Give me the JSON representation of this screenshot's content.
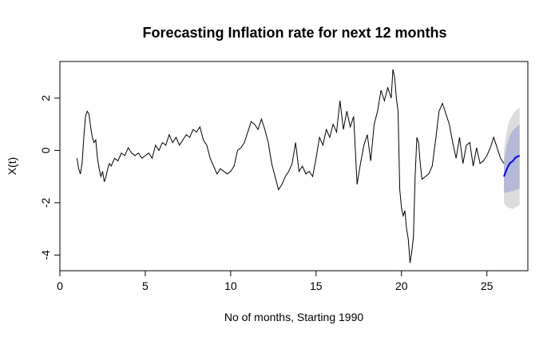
{
  "chart_data": {
    "type": "line",
    "title": "Forecasting Inflation rate for next 12 months",
    "xlabel": "No of months, Starting 1990",
    "ylabel": "X(t)",
    "xlim": [
      0,
      27.4
    ],
    "ylim": [
      -4.6,
      3.4
    ],
    "xticks": [
      0,
      5,
      10,
      15,
      20,
      25
    ],
    "yticks": [
      -4,
      -2,
      0,
      2
    ],
    "grid": false,
    "colors": {
      "series": "#000000",
      "forecast": "#0000ff",
      "band_inner": "#b4b9d8",
      "band_outer": "#dcdcdc"
    },
    "series": [
      {
        "x": [
          1.0,
          1.1,
          1.2,
          1.3,
          1.4,
          1.5,
          1.6,
          1.7,
          1.8,
          1.9,
          2.0,
          2.1,
          2.2,
          2.3,
          2.4,
          2.5,
          2.6,
          2.7,
          2.8,
          2.9,
          3.0,
          3.2,
          3.4,
          3.6,
          3.8,
          4.0,
          4.2,
          4.4,
          4.6,
          4.8,
          5.0,
          5.2,
          5.4,
          5.6,
          5.8,
          6.0,
          6.2,
          6.4,
          6.6,
          6.8,
          7.0,
          7.2,
          7.4,
          7.6,
          7.8,
          8.0,
          8.2,
          8.4,
          8.6,
          8.8,
          9.0,
          9.2,
          9.4,
          9.6,
          9.8,
          10.0,
          10.2,
          10.4,
          10.6,
          10.8,
          11.0,
          11.2,
          11.4,
          11.6,
          11.8,
          12.0,
          12.2,
          12.4,
          12.6,
          12.8,
          13.0,
          13.2,
          13.4,
          13.6,
          13.8,
          14.0,
          14.2,
          14.4,
          14.6,
          14.8,
          15.0,
          15.2,
          15.4,
          15.6,
          15.8,
          16.0,
          16.2,
          16.4,
          16.6,
          16.8,
          17.0,
          17.2,
          17.4,
          17.6,
          17.8,
          18.0,
          18.2,
          18.4,
          18.6,
          18.8,
          19.0,
          19.2,
          19.4,
          19.5,
          19.6,
          19.7,
          19.8,
          19.9,
          20.0,
          20.1,
          20.2,
          20.3,
          20.4,
          20.5,
          20.6,
          20.7,
          20.8,
          20.9,
          21.0,
          21.1,
          21.2,
          21.4,
          21.6,
          21.8,
          22.0,
          22.2,
          22.4,
          22.6,
          22.8,
          23.0,
          23.2,
          23.4,
          23.6,
          23.8,
          24.0,
          24.2,
          24.4,
          24.6,
          24.8,
          25.0,
          25.2,
          25.4,
          25.6,
          25.8,
          26.0
        ],
        "y": [
          -0.3,
          -0.7,
          -0.9,
          -0.5,
          0.5,
          1.3,
          1.5,
          1.4,
          0.9,
          0.5,
          0.3,
          0.4,
          -0.3,
          -0.7,
          -1.0,
          -0.8,
          -1.2,
          -1.0,
          -0.7,
          -0.5,
          -0.6,
          -0.3,
          -0.4,
          -0.1,
          -0.2,
          0.1,
          -0.1,
          -0.2,
          -0.1,
          -0.3,
          -0.2,
          -0.1,
          -0.3,
          0.2,
          0.0,
          0.3,
          0.2,
          0.6,
          0.3,
          0.5,
          0.2,
          0.4,
          0.6,
          0.5,
          0.8,
          0.7,
          0.9,
          0.4,
          0.2,
          -0.3,
          -0.6,
          -0.9,
          -0.7,
          -0.8,
          -0.9,
          -0.8,
          -0.6,
          0.0,
          0.1,
          0.3,
          0.7,
          1.1,
          1.0,
          0.8,
          1.2,
          0.8,
          0.3,
          -0.5,
          -1.0,
          -1.5,
          -1.3,
          -1.0,
          -0.8,
          -0.5,
          0.3,
          -0.8,
          -0.6,
          -0.9,
          -0.8,
          -1.0,
          -0.3,
          0.5,
          0.2,
          0.8,
          0.5,
          1.0,
          0.7,
          1.9,
          0.8,
          1.5,
          0.9,
          1.3,
          -1.3,
          -0.5,
          0.2,
          0.6,
          -0.4,
          1.0,
          1.5,
          2.3,
          1.9,
          2.4,
          2.0,
          3.1,
          2.8,
          2.0,
          1.5,
          -1.5,
          -2.2,
          -2.5,
          -2.3,
          -3.0,
          -3.4,
          -4.3,
          -3.9,
          -3.3,
          -1.0,
          0.5,
          0.3,
          -0.5,
          -1.1,
          -1.0,
          -0.9,
          -0.6,
          0.4,
          1.5,
          1.8,
          1.4,
          1.0,
          0.3,
          -0.3,
          0.5,
          -0.5,
          0.2,
          0.3,
          -0.6,
          0.1,
          -0.5,
          -0.4,
          -0.2,
          0.1,
          0.5,
          0.1,
          -0.3,
          -0.5
        ]
      },
      {
        "x": [
          26.0,
          26.083,
          26.167,
          26.25,
          26.333,
          26.417,
          26.5,
          26.583,
          26.667,
          26.75,
          26.833,
          26.917
        ],
        "y": [
          -1.0,
          -0.85,
          -0.72,
          -0.6,
          -0.5,
          -0.45,
          -0.42,
          -0.35,
          -0.28,
          -0.25,
          -0.22,
          -0.2
        ],
        "lo80": [
          -1.6,
          -1.62,
          -1.62,
          -1.6,
          -1.58,
          -1.56,
          -1.55,
          -1.54,
          -1.52,
          -1.5,
          -1.48,
          -1.47
        ],
        "hi80": [
          -0.4,
          -0.1,
          0.2,
          0.4,
          0.55,
          0.65,
          0.75,
          0.8,
          0.85,
          0.9,
          0.95,
          1.0
        ],
        "lo95": [
          -2.0,
          -2.1,
          -2.15,
          -2.2,
          -2.2,
          -2.22,
          -2.25,
          -2.2,
          -2.18,
          -2.15,
          -2.12,
          -2.1
        ],
        "hi95": [
          0.0,
          0.4,
          0.75,
          1.0,
          1.15,
          1.25,
          1.35,
          1.45,
          1.5,
          1.55,
          1.6,
          1.65
        ]
      }
    ]
  }
}
